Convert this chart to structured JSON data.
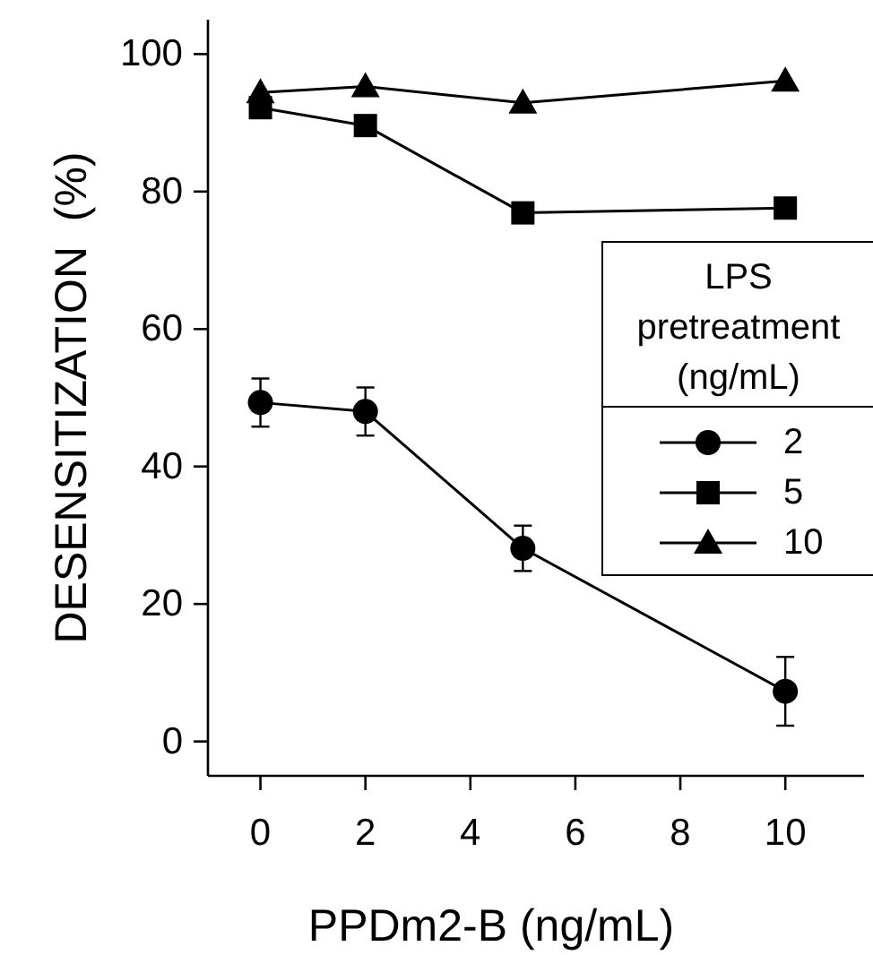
{
  "chart_data": {
    "type": "line",
    "xlabel": "PPDm2-B  (ng/mL)",
    "ylabel": "DESENSITIZATION  (%)",
    "legend_title": "LPS pretreatment (ng/mL)",
    "legend": "right",
    "x": [
      0,
      2,
      5,
      10
    ],
    "xlim": [
      -1,
      11.5
    ],
    "xticks": [
      0,
      2,
      4,
      6,
      8,
      10
    ],
    "ylim": [
      -5,
      105
    ],
    "yticks": [
      0,
      20,
      40,
      60,
      80,
      100
    ],
    "grid": false,
    "line_style": "solid",
    "series": [
      {
        "name": "2",
        "color": "#000000",
        "marker": "circle",
        "values": [
          49.3,
          48,
          28.1,
          7.3
        ],
        "errors": [
          3.5,
          3.5,
          3.3,
          5
        ]
      },
      {
        "name": "5",
        "color": "#000000",
        "marker": "square",
        "values": [
          92.2,
          89.6,
          76.9,
          77.6
        ]
      },
      {
        "name": "10",
        "color": "#000000",
        "marker": "triangle",
        "values": [
          94.4,
          95.3,
          92.9,
          96.1
        ]
      }
    ]
  }
}
